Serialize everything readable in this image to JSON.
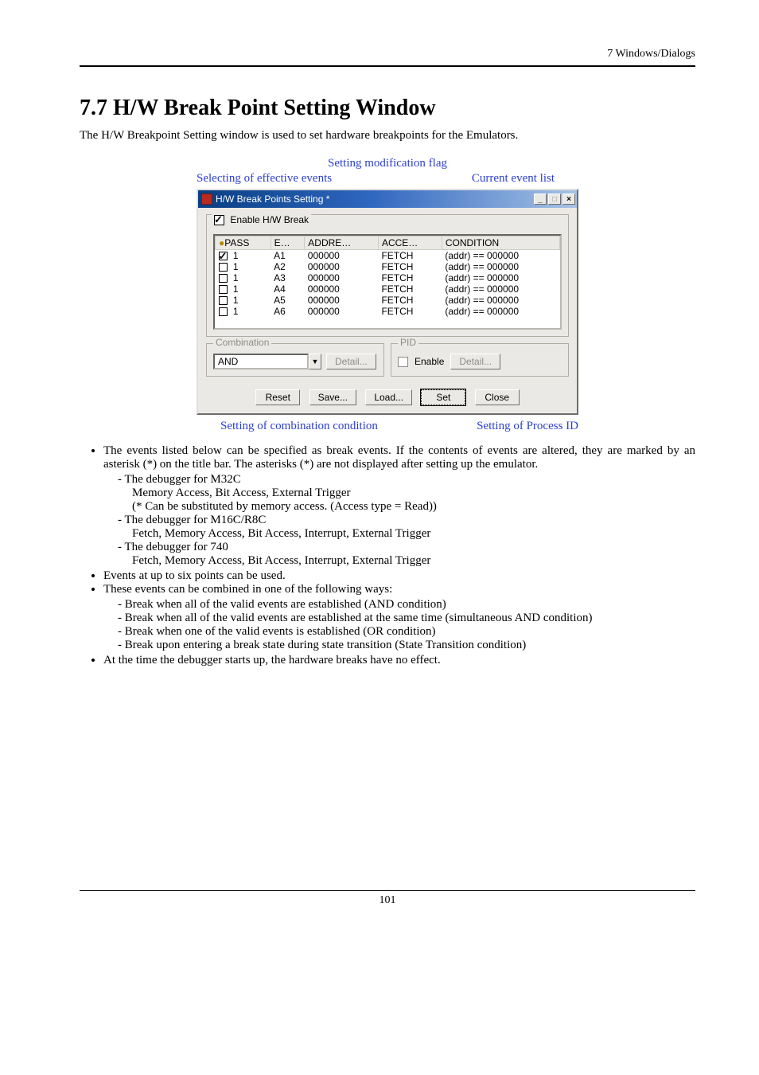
{
  "header": {
    "chapter": "7  Windows/Dialogs"
  },
  "section": {
    "number": "7.7",
    "title": "H/W Break Point Setting Window",
    "intro": "The H/W Breakpoint Setting window is used to set hardware breakpoints for the Emulators."
  },
  "annotations": {
    "top": "Setting modification flag",
    "left": "Selecting of effective events",
    "right": "Current event list",
    "bottom_left": "Setting of combination condition",
    "bottom_right": "Setting of Process ID"
  },
  "window": {
    "title": "H/W Break Points Setting *",
    "enable_label": "Enable H/W Break",
    "enable_checked": true,
    "headers": {
      "pass": "PASS",
      "e": "E…",
      "addr": "ADDRE…",
      "acc": "ACCE…",
      "cond": "CONDITION"
    },
    "rows": [
      {
        "checked": true,
        "pass": "1",
        "e": "A1",
        "addr": "000000",
        "acc": "FETCH",
        "cond": "(addr) == 000000"
      },
      {
        "checked": false,
        "pass": "1",
        "e": "A2",
        "addr": "000000",
        "acc": "FETCH",
        "cond": "(addr) == 000000"
      },
      {
        "checked": false,
        "pass": "1",
        "e": "A3",
        "addr": "000000",
        "acc": "FETCH",
        "cond": "(addr) == 000000"
      },
      {
        "checked": false,
        "pass": "1",
        "e": "A4",
        "addr": "000000",
        "acc": "FETCH",
        "cond": "(addr) == 000000"
      },
      {
        "checked": false,
        "pass": "1",
        "e": "A5",
        "addr": "000000",
        "acc": "FETCH",
        "cond": "(addr) == 000000"
      },
      {
        "checked": false,
        "pass": "1",
        "e": "A6",
        "addr": "000000",
        "acc": "FETCH",
        "cond": "(addr) == 000000"
      }
    ],
    "combination": {
      "legend": "Combination",
      "value": "AND",
      "detail": "Detail..."
    },
    "pid": {
      "legend": "PID",
      "enable": "Enable",
      "enable_checked": false,
      "detail": "Detail..."
    },
    "buttons": {
      "reset": "Reset",
      "save": "Save...",
      "load": "Load...",
      "set": "Set",
      "close": "Close"
    }
  },
  "body": {
    "b1": "The events listed below can be specified as break events. If the contents of events are altered, they are marked by an asterisk (*) on the title bar. The asterisks (*) are not displayed after setting up the emulator.",
    "b1a": "The debugger for M32C",
    "b1a1": "Memory Access, Bit Access, External Trigger",
    "b1a2": "(* Can be substituted by memory access. (Access type = Read))",
    "b1b": "The debugger for M16C/R8C",
    "b1b1": "Fetch, Memory Access, Bit Access, Interrupt, External Trigger",
    "b1c": "The debugger for 740",
    "b1c1": "Fetch, Memory Access, Bit Access, Interrupt, External Trigger",
    "b2": "Events at up to six points can be used.",
    "b3": "These events can be combined in one of the following ways:",
    "b3a": "Break when all of the valid events are established (AND condition)",
    "b3b": "Break when all of the valid events are established at the same time (simultaneous AND condition)",
    "b3c": "Break when one of the valid events is established (OR condition)",
    "b3d": "Break upon entering a break state during state transition (State Transition condition)",
    "b4": "At the time the debugger starts up, the hardware breaks have no effect."
  },
  "footer": {
    "page": "101"
  }
}
